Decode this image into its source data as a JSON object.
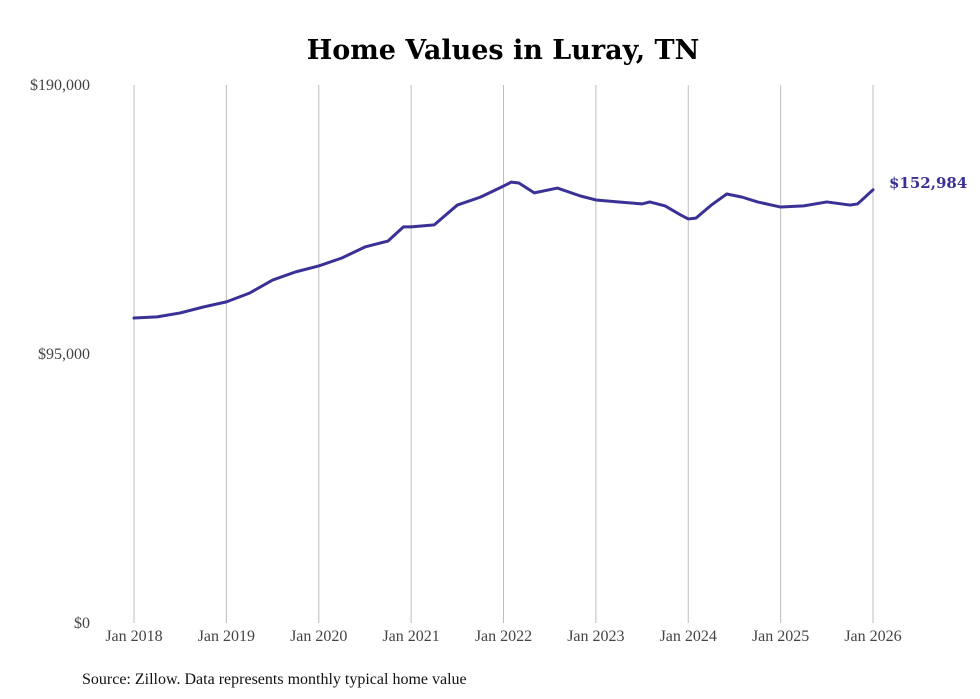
{
  "chart_data": {
    "type": "line",
    "title": "Home Values in Luray, TN",
    "xlabel": "",
    "ylabel": "",
    "source": "Source: Zillow. Data represents monthly typical home value",
    "ylim": [
      0,
      190000
    ],
    "yticks": [
      0,
      95000,
      190000
    ],
    "ytick_labels": [
      "$0",
      "$95,000",
      "$190,000"
    ],
    "x_start": "Jan 2018",
    "x_unit": "months since Jan 2018",
    "xlim": [
      0,
      96
    ],
    "xticks": [
      0,
      12,
      24,
      36,
      48,
      60,
      72,
      84,
      96
    ],
    "xtick_labels": [
      "Jan 2018",
      "Jan 2019",
      "Jan 2020",
      "Jan 2021",
      "Jan 2022",
      "Jan 2023",
      "Jan 2024",
      "Jan 2025",
      "Jan 2026"
    ],
    "grid": "vertical",
    "series": [
      {
        "name": "Typical home value",
        "color": "#3a3196",
        "end_label": "$152,984",
        "x": [
          0,
          3,
          6,
          9,
          12,
          15,
          18,
          21,
          24,
          27,
          30,
          33,
          35,
          36,
          39,
          42,
          45,
          48,
          49,
          50,
          52,
          55,
          58,
          60,
          63,
          66,
          67,
          69,
          71,
          72,
          73,
          75,
          77,
          79,
          81,
          84,
          87,
          90,
          93,
          94,
          96
        ],
        "values": [
          107700,
          108100,
          109500,
          111600,
          113400,
          116500,
          121100,
          124000,
          126100,
          128900,
          132800,
          134900,
          139900,
          139900,
          140600,
          147600,
          150400,
          154300,
          155700,
          155400,
          151900,
          153600,
          150800,
          149400,
          148700,
          148000,
          148700,
          147300,
          144100,
          142700,
          143000,
          147600,
          151500,
          150400,
          148700,
          146900,
          147300,
          148700,
          147600,
          148000,
          152984
        ]
      }
    ]
  }
}
